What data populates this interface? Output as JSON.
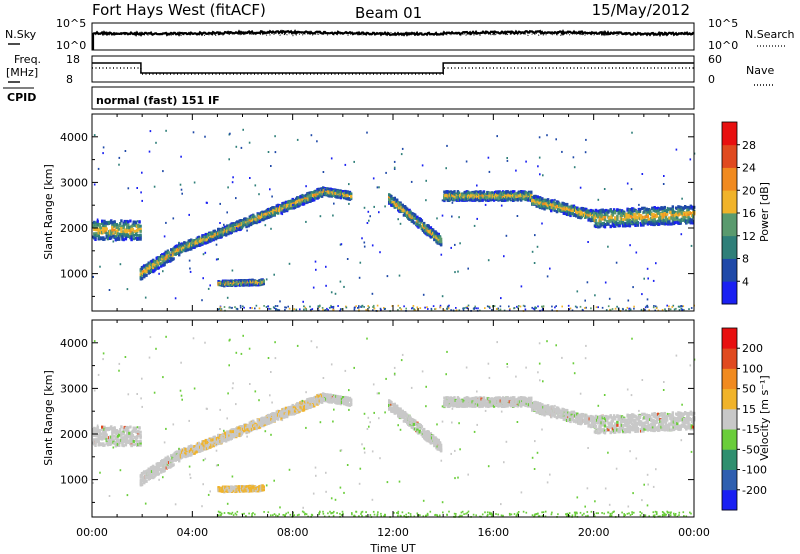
{
  "header": {
    "station": "Fort Hays West (fitACF)",
    "beam": "Beam 01",
    "date": "15/May/2012"
  },
  "status_panels": {
    "nsky_label": "N.Sky",
    "nsearch_label": "N.Search",
    "nsky_ticks": [
      "10^5",
      "10^0"
    ],
    "freq_label_line1": "Freq.",
    "freq_label_line2": "[MHz]",
    "freq_ticks": [
      "18",
      "8"
    ],
    "nave_label": "Nave",
    "nave_ticks": [
      "60",
      "0"
    ],
    "cpid_label": "CPID",
    "program": "normal (fast) 151 IF"
  },
  "chart_data": [
    {
      "type": "heatmap",
      "name": "power-panel",
      "ylabel": "Slant Range [km]",
      "ylim": [
        180,
        4500
      ],
      "yticks": [
        1000,
        2000,
        3000,
        4000
      ],
      "xlim": [
        0,
        24
      ],
      "colorbar_label": "Power [dB]",
      "colorbar_ticks": [
        "4",
        "8",
        "12",
        "16",
        "20",
        "24",
        "28"
      ],
      "colorbar_colors": [
        "#1a20f2",
        "#1f49a8",
        "#2f7f79",
        "#5a9a6e",
        "#f0b32a",
        "#f08a1f",
        "#e04a1f",
        "#e81010"
      ],
      "echo_bands": [
        {
          "t0": 0.0,
          "t1": 1.9,
          "r0": 1950,
          "r1": 1950,
          "w": 420
        },
        {
          "t0": 1.9,
          "t1": 3.5,
          "r0": 1000,
          "r1": 1550,
          "w": 260
        },
        {
          "t0": 3.5,
          "t1": 9.2,
          "r0": 1550,
          "r1": 2800,
          "w": 200
        },
        {
          "t0": 9.2,
          "t1": 10.3,
          "r0": 2800,
          "r1": 2700,
          "w": 160
        },
        {
          "t0": 5.0,
          "t1": 6.8,
          "r0": 780,
          "r1": 810,
          "w": 110
        },
        {
          "t0": 11.8,
          "t1": 13.9,
          "r0": 2650,
          "r1": 1700,
          "w": 220
        },
        {
          "t0": 14.0,
          "t1": 17.5,
          "r0": 2700,
          "r1": 2700,
          "w": 200
        },
        {
          "t0": 17.5,
          "t1": 20.0,
          "r0": 2600,
          "r1": 2250,
          "w": 230
        },
        {
          "t0": 20.0,
          "t1": 24.0,
          "r0": 2200,
          "r1": 2300,
          "w": 380
        }
      ]
    },
    {
      "type": "heatmap",
      "name": "velocity-panel",
      "ylabel": "Slant Range [km]",
      "ylim": [
        180,
        4500
      ],
      "yticks": [
        1000,
        2000,
        3000,
        4000
      ],
      "xlim": [
        0,
        24
      ],
      "xticks": [
        "00:00",
        "04:00",
        "08:00",
        "12:00",
        "16:00",
        "20:00",
        "00:00"
      ],
      "xlabel": "Time UT",
      "colorbar_label": "Velocity [m s⁻¹]",
      "colorbar_ticks": [
        "200",
        "100",
        "50",
        "15",
        "-15",
        "-50",
        "-100",
        "-200"
      ],
      "colorbar_colors": [
        "#1a20f2",
        "#2f5fb0",
        "#2f8f6f",
        "#6acd3a",
        "#c8c8c8",
        "#f0b32a",
        "#f08a1f",
        "#e04a1f",
        "#e81010"
      ],
      "echo_bands": [
        {
          "t0": 0.0,
          "t1": 1.9,
          "r0": 1950,
          "r1": 1950,
          "w": 420
        },
        {
          "t0": 1.9,
          "t1": 3.5,
          "r0": 1000,
          "r1": 1550,
          "w": 260
        },
        {
          "t0": 3.5,
          "t1": 9.2,
          "r0": 1550,
          "r1": 2800,
          "w": 200
        },
        {
          "t0": 9.2,
          "t1": 10.3,
          "r0": 2800,
          "r1": 2700,
          "w": 160
        },
        {
          "t0": 5.0,
          "t1": 6.8,
          "r0": 780,
          "r1": 810,
          "w": 110
        },
        {
          "t0": 11.8,
          "t1": 13.9,
          "r0": 2650,
          "r1": 1700,
          "w": 220
        },
        {
          "t0": 14.0,
          "t1": 17.5,
          "r0": 2700,
          "r1": 2700,
          "w": 200
        },
        {
          "t0": 17.5,
          "t1": 20.0,
          "r0": 2600,
          "r1": 2250,
          "w": 230
        },
        {
          "t0": 20.0,
          "t1": 24.0,
          "r0": 2200,
          "r1": 2300,
          "w": 380
        }
      ]
    }
  ]
}
